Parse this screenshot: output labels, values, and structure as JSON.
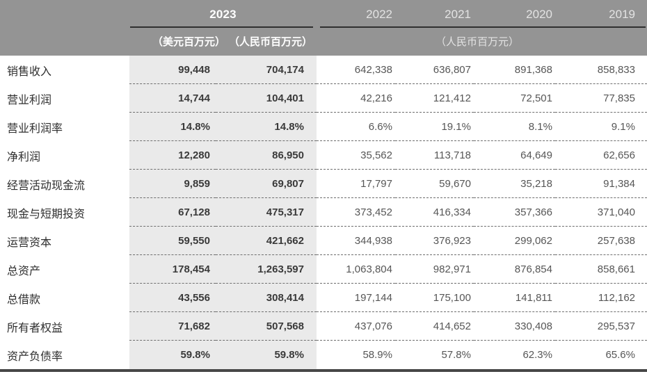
{
  "table": {
    "header": {
      "current_year": "2023",
      "prior_years": [
        "2022",
        "2021",
        "2020",
        "2019"
      ],
      "unit_usd": "（美元百万元）",
      "unit_rmb": "（人民币百万元）",
      "unit_prior": "（人民币百万元）"
    },
    "rows": [
      {
        "label": "销售收入",
        "usd": "99,448",
        "rmb": "704,174",
        "v2022": "642,338",
        "v2021": "636,807",
        "v2020": "891,368",
        "v2019": "858,833"
      },
      {
        "label": "营业利润",
        "usd": "14,744",
        "rmb": "104,401",
        "v2022": "42,216",
        "v2021": "121,412",
        "v2020": "72,501",
        "v2019": "77,835"
      },
      {
        "label": "营业利润率",
        "usd": "14.8%",
        "rmb": "14.8%",
        "v2022": "6.6%",
        "v2021": "19.1%",
        "v2020": "8.1%",
        "v2019": "9.1%"
      },
      {
        "label": "净利润",
        "usd": "12,280",
        "rmb": "86,950",
        "v2022": "35,562",
        "v2021": "113,718",
        "v2020": "64,649",
        "v2019": "62,656"
      },
      {
        "label": "经营活动现金流",
        "usd": "9,859",
        "rmb": "69,807",
        "v2022": "17,797",
        "v2021": "59,670",
        "v2020": "35,218",
        "v2019": "91,384"
      },
      {
        "label": "现金与短期投资",
        "usd": "67,128",
        "rmb": "475,317",
        "v2022": "373,452",
        "v2021": "416,334",
        "v2020": "357,366",
        "v2019": "371,040"
      },
      {
        "label": "运营资本",
        "usd": "59,550",
        "rmb": "421,662",
        "v2022": "344,938",
        "v2021": "376,923",
        "v2020": "299,062",
        "v2019": "257,638"
      },
      {
        "label": "总资产",
        "usd": "178,454",
        "rmb": "1,263,597",
        "v2022": "1,063,804",
        "v2021": "982,971",
        "v2020": "876,854",
        "v2019": "858,661"
      },
      {
        "label": "总借款",
        "usd": "43,556",
        "rmb": "308,414",
        "v2022": "197,144",
        "v2021": "175,100",
        "v2020": "141,811",
        "v2019": "112,162"
      },
      {
        "label": "所有者权益",
        "usd": "71,682",
        "rmb": "507,568",
        "v2022": "437,076",
        "v2021": "414,652",
        "v2020": "330,408",
        "v2019": "295,537"
      },
      {
        "label": "资产负债率",
        "usd": "59.8%",
        "rmb": "59.8%",
        "v2022": "58.9%",
        "v2021": "57.8%",
        "v2020": "62.3%",
        "v2019": "65.6%"
      }
    ],
    "colors": {
      "header_bg": "#949494",
      "header_text_primary": "#ffffff",
      "header_text_secondary": "#e3e3e3",
      "highlight_column_bg": "#eaeaea",
      "bold_value_text": "#3a3a3a",
      "value_text": "#565656",
      "dashed_divider": "#6e6e6e",
      "header_underline": "#2e2e2e",
      "bottom_rule": "#474747"
    }
  }
}
